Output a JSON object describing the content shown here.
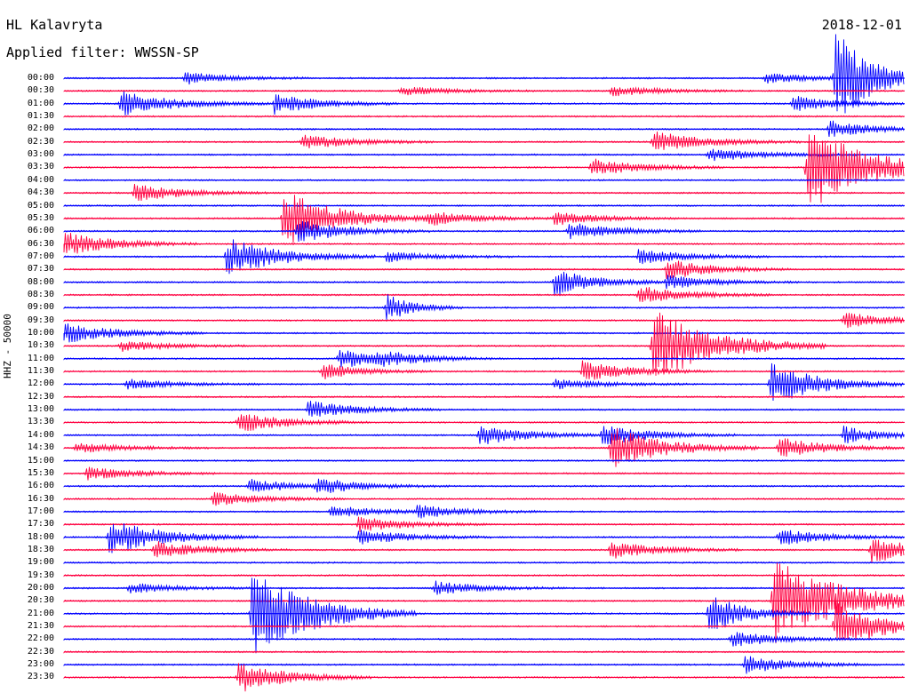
{
  "header": {
    "station": "HL Kalavryta",
    "filter": "Applied filter: WWSSN-SP",
    "date": "2018-12-01"
  },
  "channel_label": "HHZ - 50000",
  "time_labels": [
    "00:00",
    "00:30",
    "01:00",
    "01:30",
    "02:00",
    "02:30",
    "03:00",
    "03:30",
    "04:00",
    "04:30",
    "05:00",
    "05:30",
    "06:00",
    "06:30",
    "07:00",
    "07:30",
    "08:00",
    "08:30",
    "09:00",
    "09:30",
    "10:00",
    "10:30",
    "11:00",
    "11:30",
    "12:00",
    "12:30",
    "13:00",
    "13:30",
    "14:00",
    "14:30",
    "15:00",
    "15:30",
    "16:00",
    "16:30",
    "17:00",
    "17:30",
    "18:00",
    "18:30",
    "19:00",
    "19:30",
    "20:00",
    "20:30",
    "21:00",
    "21:30",
    "22:00",
    "22:30",
    "23:00",
    "23:30"
  ],
  "colors": {
    "even_trace": "#0000ff",
    "odd_trace": "#ff0040"
  },
  "events": [
    {
      "row": 0,
      "minute": 4.3,
      "amp": 7,
      "decay": 0.9
    },
    {
      "row": 0,
      "minute": 25,
      "amp": 6,
      "decay": 1
    },
    {
      "row": 0,
      "minute": 27.5,
      "amp": 55,
      "decay": 0.6
    },
    {
      "row": 1,
      "minute": 12,
      "amp": 5,
      "decay": 1
    },
    {
      "row": 1,
      "minute": 19.5,
      "amp": 6,
      "decay": 1
    },
    {
      "row": 2,
      "minute": 2,
      "amp": 14,
      "decay": 1.2
    },
    {
      "row": 2,
      "minute": 7.5,
      "amp": 12,
      "decay": 0.9
    },
    {
      "row": 2,
      "minute": 26,
      "amp": 9,
      "decay": 1
    },
    {
      "row": 4,
      "minute": 27.3,
      "amp": 10,
      "decay": 0.8
    },
    {
      "row": 5,
      "minute": 8.5,
      "amp": 9,
      "decay": 1
    },
    {
      "row": 5,
      "minute": 21,
      "amp": 12,
      "decay": 1.2
    },
    {
      "row": 6,
      "minute": 23,
      "amp": 8,
      "decay": 1.2
    },
    {
      "row": 7,
      "minute": 18.8,
      "amp": 10,
      "decay": 1
    },
    {
      "row": 7,
      "minute": 26.5,
      "amp": 50,
      "decay": 1.5
    },
    {
      "row": 9,
      "minute": 2.5,
      "amp": 10,
      "decay": 1
    },
    {
      "row": 11,
      "minute": 7.8,
      "amp": 34,
      "decay": 1.2
    },
    {
      "row": 11,
      "minute": 13,
      "amp": 9,
      "decay": 0.9
    },
    {
      "row": 11,
      "minute": 17.5,
      "amp": 8,
      "decay": 0.9
    },
    {
      "row": 12,
      "minute": 8.3,
      "amp": 14,
      "decay": 1
    },
    {
      "row": 12,
      "minute": 18,
      "amp": 10,
      "decay": 1
    },
    {
      "row": 13,
      "minute": 0,
      "amp": 14,
      "decay": 1
    },
    {
      "row": 14,
      "minute": 5.8,
      "amp": 22,
      "decay": 1.2
    },
    {
      "row": 14,
      "minute": 11.5,
      "amp": 6,
      "decay": 1
    },
    {
      "row": 14,
      "minute": 20.5,
      "amp": 9,
      "decay": 1
    },
    {
      "row": 15,
      "minute": 21.5,
      "amp": 12,
      "decay": 0.9
    },
    {
      "row": 16,
      "minute": 17.5,
      "amp": 15,
      "decay": 0.8
    },
    {
      "row": 16,
      "minute": 21.5,
      "amp": 8,
      "decay": 1
    },
    {
      "row": 17,
      "minute": 20.5,
      "amp": 11,
      "decay": 1
    },
    {
      "row": 18,
      "minute": 11.5,
      "amp": 16,
      "decay": 0.3
    },
    {
      "row": 19,
      "minute": 27.8,
      "amp": 9,
      "decay": 1
    },
    {
      "row": 20,
      "minute": 0,
      "amp": 12,
      "decay": 1.1
    },
    {
      "row": 21,
      "minute": 2,
      "amp": 6,
      "decay": 1
    },
    {
      "row": 21,
      "minute": 21,
      "amp": 42,
      "decay": 1.5
    },
    {
      "row": 22,
      "minute": 9.8,
      "amp": 12,
      "decay": 1
    },
    {
      "row": 22,
      "minute": 11.2,
      "amp": 6,
      "decay": 0.9
    },
    {
      "row": 23,
      "minute": 9.2,
      "amp": 9,
      "decay": 0.7
    },
    {
      "row": 23,
      "minute": 18.5,
      "amp": 12,
      "decay": 1
    },
    {
      "row": 24,
      "minute": 2.2,
      "amp": 6,
      "decay": 1
    },
    {
      "row": 24,
      "minute": 17.5,
      "amp": 6,
      "decay": 1
    },
    {
      "row": 24,
      "minute": 25.2,
      "amp": 25,
      "decay": 1
    },
    {
      "row": 26,
      "minute": 8.7,
      "amp": 10,
      "decay": 1
    },
    {
      "row": 27,
      "minute": 6.2,
      "amp": 12,
      "decay": 1
    },
    {
      "row": 28,
      "minute": 14.8,
      "amp": 12,
      "decay": 1
    },
    {
      "row": 28,
      "minute": 19.2,
      "amp": 12,
      "decay": 1
    },
    {
      "row": 28,
      "minute": 27.8,
      "amp": 10,
      "decay": 0.8
    },
    {
      "row": 29,
      "minute": 0.4,
      "amp": 6,
      "decay": 1
    },
    {
      "row": 29,
      "minute": 19.5,
      "amp": 24,
      "decay": 1.2
    },
    {
      "row": 29,
      "minute": 25.5,
      "amp": 12,
      "decay": 1
    },
    {
      "row": 31,
      "minute": 0.8,
      "amp": 8,
      "decay": 1
    },
    {
      "row": 32,
      "minute": 6.6,
      "amp": 8,
      "decay": 1
    },
    {
      "row": 32,
      "minute": 9,
      "amp": 8,
      "decay": 1
    },
    {
      "row": 33,
      "minute": 5.3,
      "amp": 8,
      "decay": 1
    },
    {
      "row": 34,
      "minute": 9.5,
      "amp": 7,
      "decay": 1
    },
    {
      "row": 34,
      "minute": 12.6,
      "amp": 7,
      "decay": 1
    },
    {
      "row": 35,
      "minute": 10.5,
      "amp": 9,
      "decay": 1
    },
    {
      "row": 36,
      "minute": 1.6,
      "amp": 20,
      "decay": 1.2
    },
    {
      "row": 36,
      "minute": 10.5,
      "amp": 9,
      "decay": 1
    },
    {
      "row": 36,
      "minute": 25.5,
      "amp": 10,
      "decay": 1
    },
    {
      "row": 37,
      "minute": 3.2,
      "amp": 10,
      "decay": 1
    },
    {
      "row": 37,
      "minute": 19.5,
      "amp": 10,
      "decay": 1
    },
    {
      "row": 37,
      "minute": 28.8,
      "amp": 15,
      "decay": 1
    },
    {
      "row": 40,
      "minute": 2.3,
      "amp": 6,
      "decay": 1
    },
    {
      "row": 40,
      "minute": 13.2,
      "amp": 8,
      "decay": 1
    },
    {
      "row": 41,
      "minute": 25.3,
      "amp": 50,
      "decay": 1.8
    },
    {
      "row": 42,
      "minute": 6.7,
      "amp": 55,
      "decay": 1.4
    },
    {
      "row": 42,
      "minute": 23,
      "amp": 25,
      "decay": 0.6
    },
    {
      "row": 43,
      "minute": 27.5,
      "amp": 30,
      "decay": 1
    },
    {
      "row": 44,
      "minute": 23.8,
      "amp": 9,
      "decay": 1
    },
    {
      "row": 46,
      "minute": 24.3,
      "amp": 10,
      "decay": 1
    },
    {
      "row": 47,
      "minute": 6.2,
      "amp": 18,
      "decay": 1
    }
  ]
}
